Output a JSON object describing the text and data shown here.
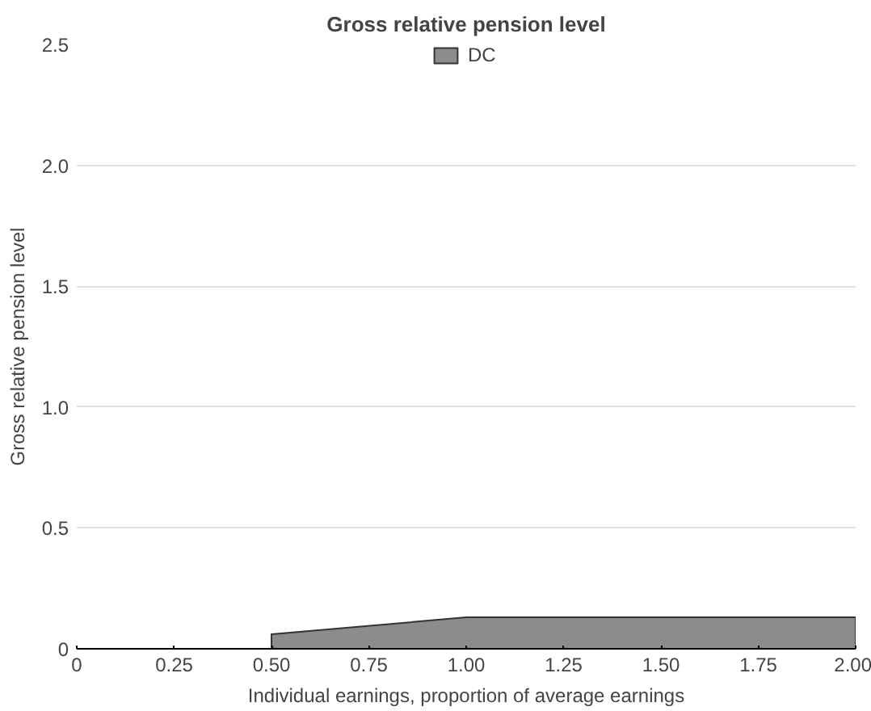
{
  "chart_data": {
    "type": "area",
    "title": "Gross relative pension level",
    "xlabel": "Individual earnings, proportion of average earnings",
    "ylabel": "Gross relative pension level",
    "x": [
      0,
      0.5,
      0.5,
      1,
      2
    ],
    "series": [
      {
        "name": "DC",
        "color": "#8c8c8c",
        "values": [
          0,
          0,
          0.06,
          0.13,
          0.13
        ]
      }
    ],
    "xlim": [
      0,
      2
    ],
    "xticks": [
      0,
      {
        "value": 0.25,
        "label": "0.25"
      },
      {
        "value": 0.5,
        "label": "0.50"
      },
      {
        "value": 0.75,
        "label": "0.75"
      },
      {
        "value": 1,
        "label": "1.00"
      },
      {
        "value": 1.25,
        "label": "1.25"
      },
      {
        "value": 1.5,
        "label": "1.50"
      },
      {
        "value": 1.75,
        "label": "1.75"
      },
      {
        "value": 2,
        "label": "2.00"
      }
    ],
    "ylim": [
      0,
      2.5
    ],
    "yticks": [
      0,
      {
        "value": 0.5,
        "label": "0.5"
      },
      {
        "value": 1,
        "label": "1.0"
      },
      {
        "value": 1.5,
        "label": "1.5"
      },
      {
        "value": 2,
        "label": "2.0"
      },
      {
        "value": 2.5,
        "label": "2.5"
      }
    ],
    "grid": "y",
    "legend": "top"
  }
}
